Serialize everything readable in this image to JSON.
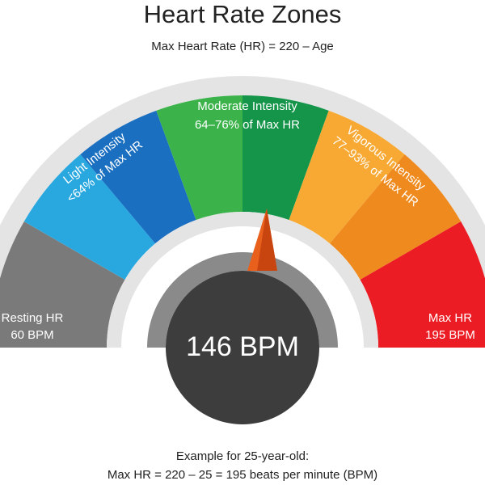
{
  "header": {
    "title": "Heart Rate Zones",
    "subtitle": "Max Heart Rate (HR) = 220 – Age"
  },
  "zones": [
    {
      "label": "Resting HR",
      "detail": "60 BPM"
    },
    {
      "label": "Light Intensity",
      "detail": "<64% of Max HR"
    },
    {
      "label": "Moderate Intensity",
      "detail": "64–76% of Max HR"
    },
    {
      "label": "Vigorous Intensity",
      "detail": "77–93% of Max HR"
    },
    {
      "label": "Max HR",
      "detail": "195 BPM"
    }
  ],
  "gauge": {
    "reading": "146 BPM"
  },
  "footer": {
    "line1": "Example for 25-year-old:",
    "line2": "Max HR = 220 – 25 = 195 beats per minute (BPM)"
  }
}
